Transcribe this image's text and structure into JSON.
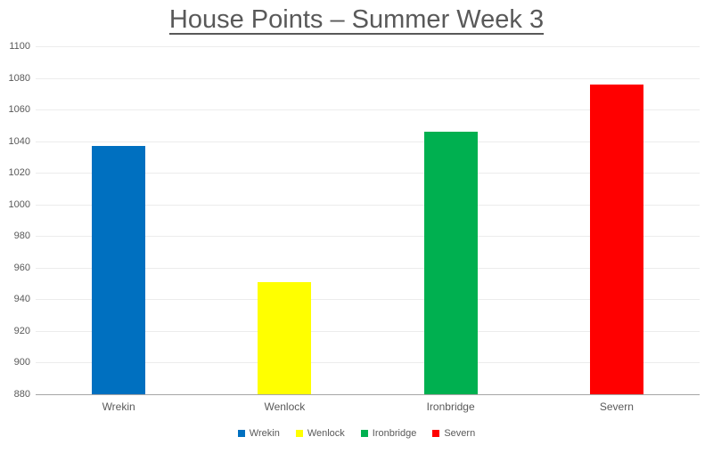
{
  "chart_data": {
    "type": "bar",
    "title": "House Points – Summer Week 3",
    "categories": [
      "Wrekin",
      "Wenlock",
      "Ironbridge",
      "Severn"
    ],
    "values": [
      1037,
      951,
      1046,
      1076
    ],
    "colors": [
      "#0070C0",
      "#FFFF00",
      "#00B050",
      "#FF0000"
    ],
    "ylim": [
      880,
      1100
    ],
    "yticks": [
      880,
      900,
      920,
      940,
      960,
      980,
      1000,
      1020,
      1040,
      1060,
      1080,
      1100
    ],
    "xlabel": "",
    "ylabel": "",
    "grid": true,
    "legend_position": "bottom",
    "legend": [
      {
        "label": "Wrekin",
        "color": "#0070C0"
      },
      {
        "label": "Wenlock",
        "color": "#FFFF00"
      },
      {
        "label": "Ironbridge",
        "color": "#00B050"
      },
      {
        "label": "Severn",
        "color": "#FF0000"
      }
    ],
    "background_color": "#FFFFFF",
    "text_color": "#595959"
  }
}
